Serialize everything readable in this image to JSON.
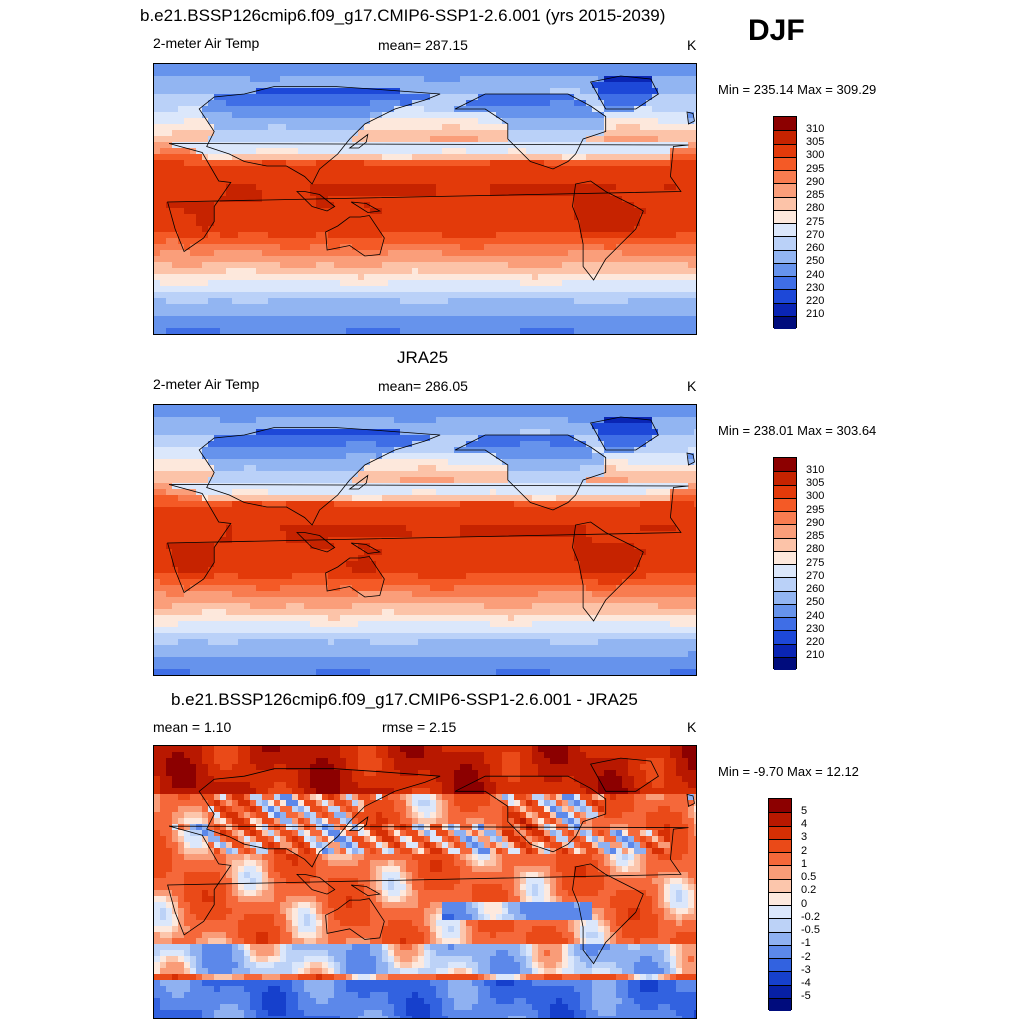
{
  "season": "DJF",
  "panels": [
    {
      "title": "b.e21.BSSP126cmip6.f09_g17.CMIP6-SSP1-2.6.001 (yrs 2015-2039)",
      "left": "2-meter Air Temp",
      "center": "mean= 287.15",
      "right": "K",
      "minmax": "Min = 235.14 Max = 309.29",
      "colorbar_labels": [
        "310",
        "305",
        "300",
        "295",
        "290",
        "285",
        "280",
        "275",
        "270",
        "260",
        "250",
        "240",
        "230",
        "220",
        "210"
      ],
      "colorbar_colors": [
        "#8c0000",
        "#c62300",
        "#e33a0a",
        "#f45a26",
        "#f87c50",
        "#fa9e7a",
        "#fcc3a8",
        "#fde8dc",
        "#dbe7fb",
        "#bad1f8",
        "#92b5f2",
        "#6693ec",
        "#3f6ee6",
        "#1d48d8",
        "#0a25b4",
        "#000c7d"
      ],
      "map_kind": "abs"
    },
    {
      "title": "JRA25",
      "left": "2-meter Air Temp",
      "center": "mean= 286.05",
      "right": "K",
      "minmax": "Min = 238.01 Max = 303.64",
      "colorbar_labels": [
        "310",
        "305",
        "300",
        "295",
        "290",
        "285",
        "280",
        "275",
        "270",
        "260",
        "250",
        "240",
        "230",
        "220",
        "210"
      ],
      "colorbar_colors": [
        "#8c0000",
        "#c62300",
        "#e33a0a",
        "#f45a26",
        "#f87c50",
        "#fa9e7a",
        "#fcc3a8",
        "#fde8dc",
        "#dbe7fb",
        "#bad1f8",
        "#92b5f2",
        "#6693ec",
        "#3f6ee6",
        "#1d48d8",
        "#0a25b4",
        "#000c7d"
      ],
      "map_kind": "abs"
    },
    {
      "title": "b.e21.BSSP126cmip6.f09_g17.CMIP6-SSP1-2.6.001 - JRA25",
      "left": "mean =   1.10",
      "center": "rmse =   2.15",
      "right": "K",
      "minmax": "Min =  -9.70 Max =  12.12",
      "colorbar_labels": [
        "5",
        "4",
        "3",
        "2",
        "1",
        "0.5",
        "0.2",
        "0",
        "-0.2",
        "-0.5",
        "-1",
        "-2",
        "-3",
        "-4",
        "-5"
      ],
      "colorbar_colors": [
        "#8c0000",
        "#b81800",
        "#d62f04",
        "#ea4a18",
        "#f5683a",
        "#f99c78",
        "#fcc6ac",
        "#fde9de",
        "#dbe7fb",
        "#bcd2f7",
        "#8fb1f1",
        "#5c88ea",
        "#3262e0",
        "#1640cc",
        "#0720a6",
        "#000c7d"
      ],
      "map_kind": "diff"
    }
  ]
}
